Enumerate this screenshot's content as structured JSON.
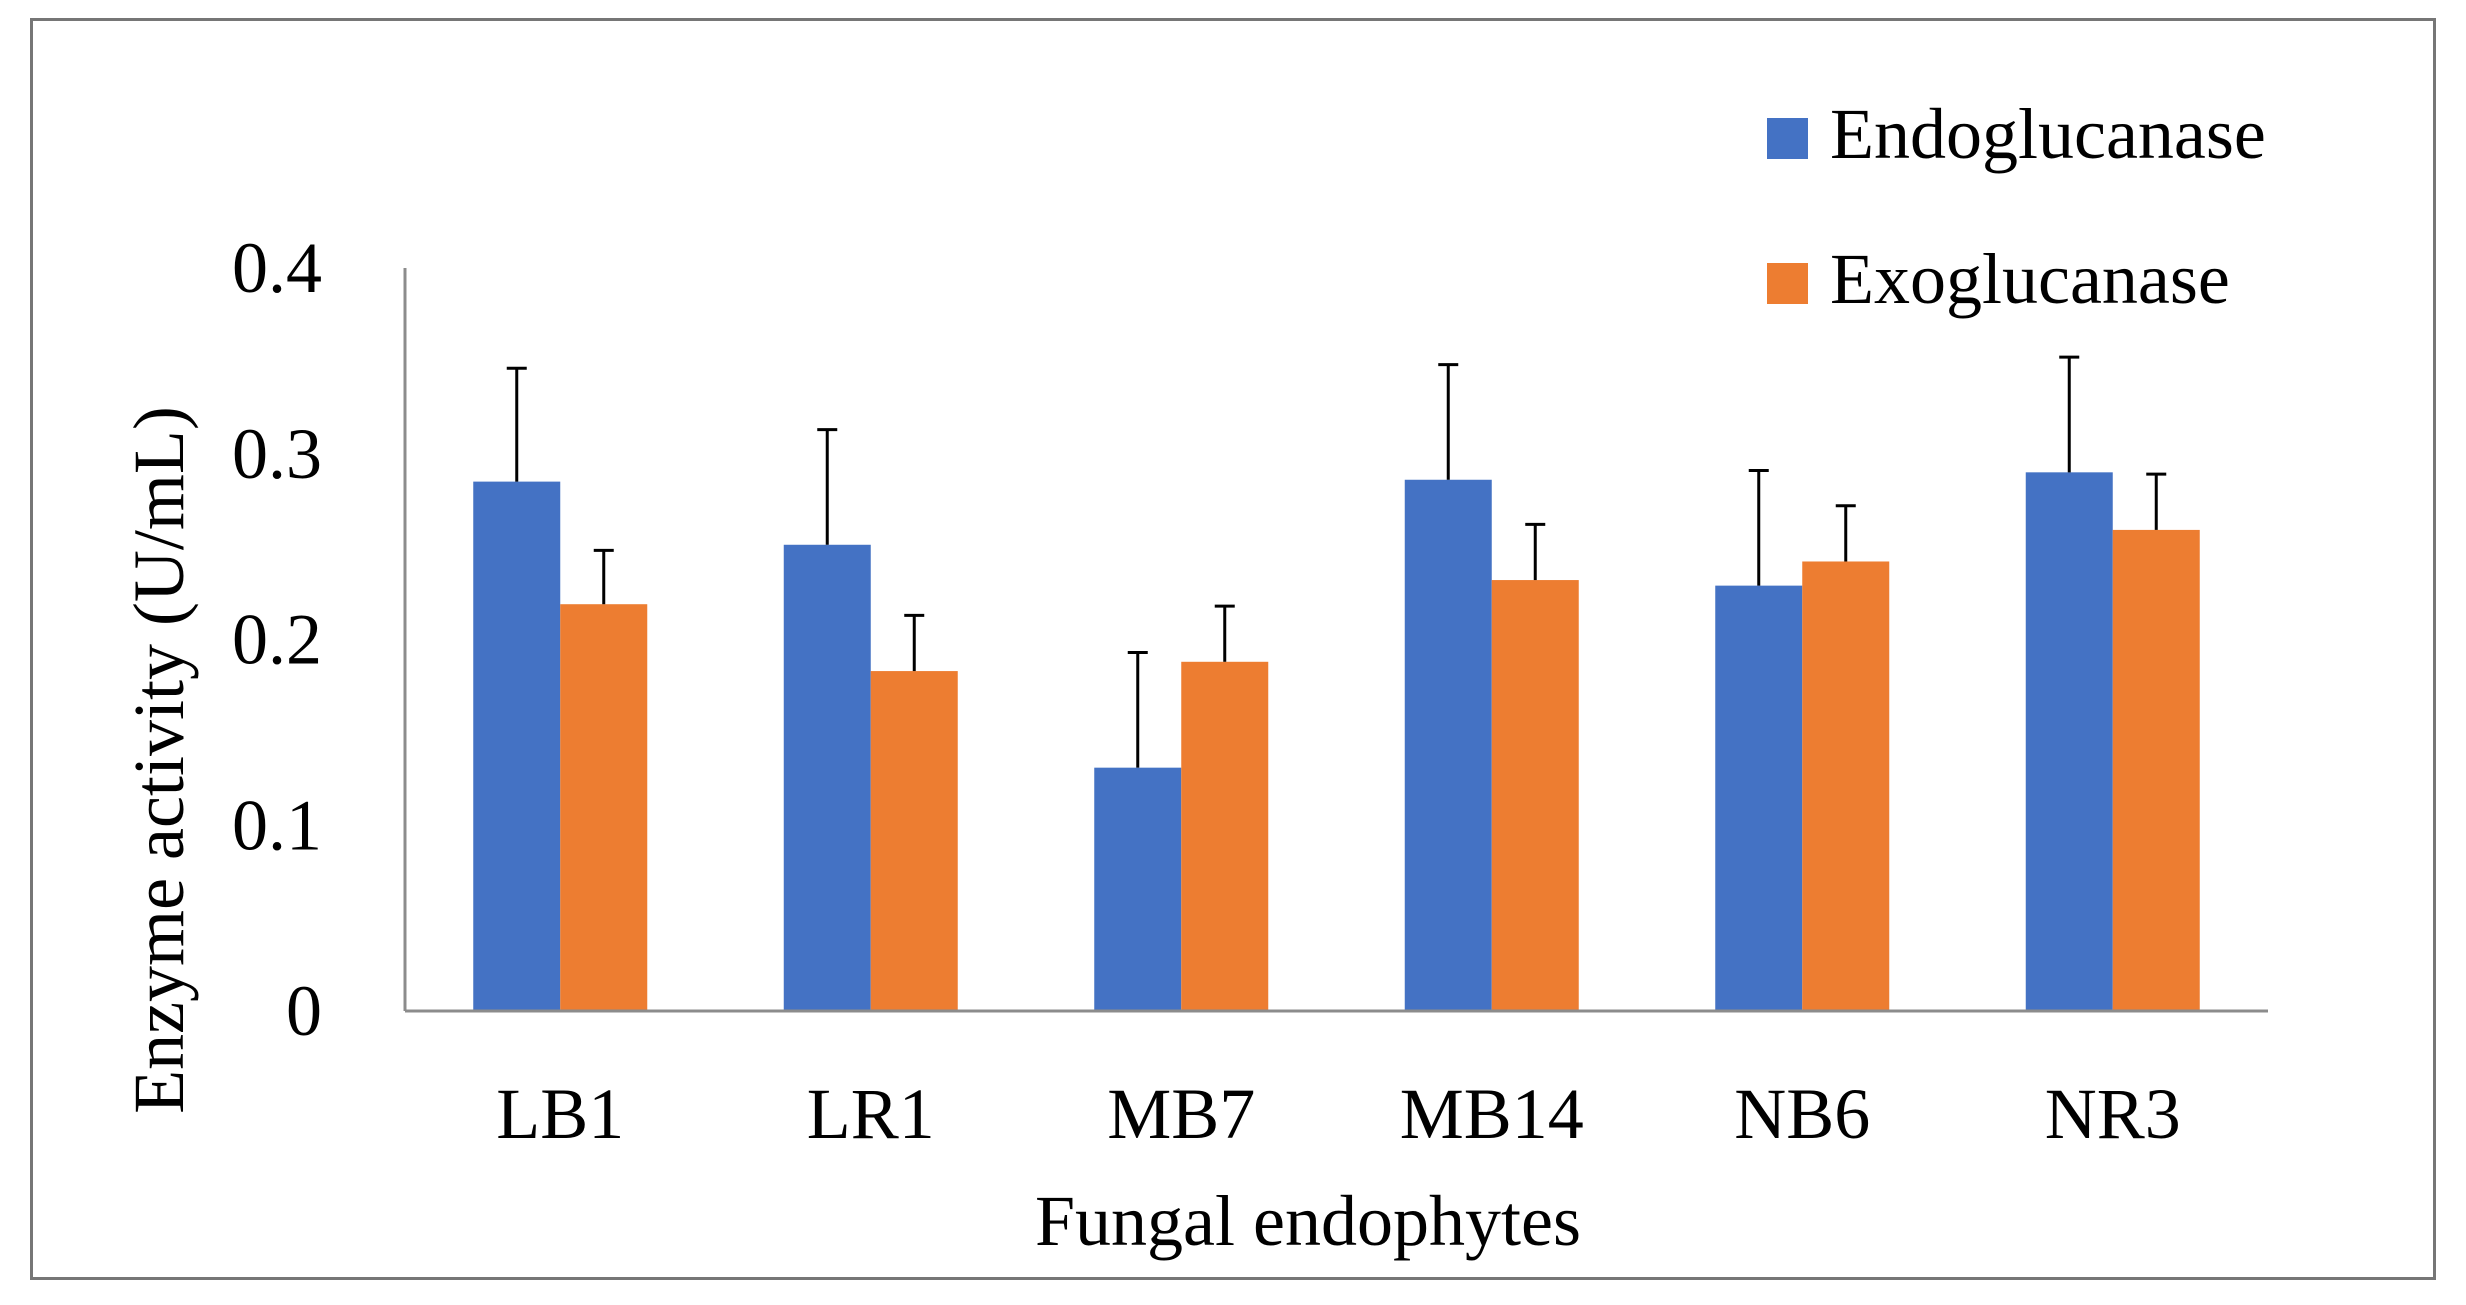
{
  "chart_data": {
    "type": "bar",
    "title": "",
    "xlabel": "Fungal endophytes",
    "ylabel": "Enzyme activity (U/mL)",
    "ylim": [
      0,
      0.4
    ],
    "yticks": [
      0,
      0.1,
      0.2,
      0.3,
      0.4
    ],
    "ytick_labels": [
      "0",
      "0.1",
      "0.2",
      "0.3",
      "0.4"
    ],
    "categories": [
      "LB1",
      "LR1",
      "MB7",
      "MB14",
      "NB6",
      "NR3"
    ],
    "series": [
      {
        "name": "Endoglucanase",
        "color": "#4472C4",
        "values": [
          0.285,
          0.251,
          0.131,
          0.286,
          0.229,
          0.29
        ],
        "errors": [
          0.061,
          0.062,
          0.062,
          0.062,
          0.062,
          0.062
        ]
      },
      {
        "name": "Exoglucanase",
        "color": "#ED7D31",
        "values": [
          0.219,
          0.183,
          0.188,
          0.232,
          0.242,
          0.259
        ],
        "errors": [
          0.029,
          0.03,
          0.03,
          0.03,
          0.03,
          0.03
        ]
      }
    ],
    "legend_position": "top-right",
    "grid": false
  }
}
